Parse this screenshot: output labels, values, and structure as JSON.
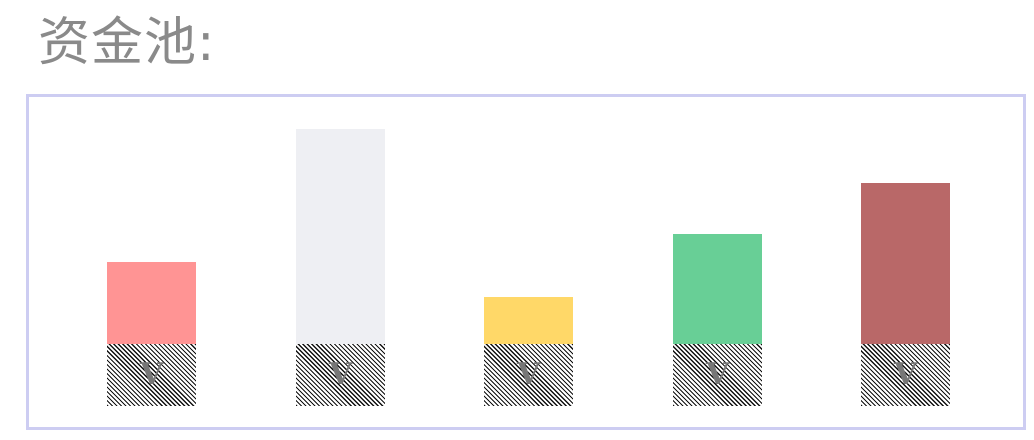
{
  "header": {
    "title": "资金池:"
  },
  "pool": {
    "bars": [
      {
        "label": "V",
        "color": "#ff9494",
        "level": 0.38
      },
      {
        "label": "V",
        "color": "#eeeff3",
        "level": 1.0
      },
      {
        "label": "V",
        "color": "#ffd868",
        "level": 0.22
      },
      {
        "label": "V",
        "color": "#68cf96",
        "level": 0.51
      },
      {
        "label": "V",
        "color": "#b96868",
        "level": 0.75
      }
    ]
  }
}
